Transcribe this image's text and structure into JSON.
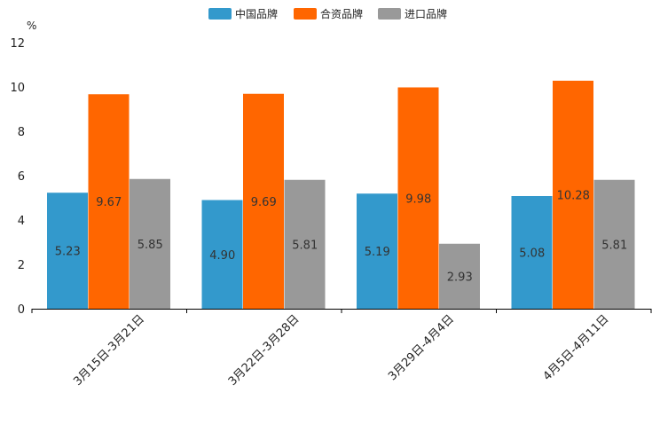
{
  "chart_data": {
    "type": "bar",
    "title": "",
    "ylabel": "%",
    "xlabel": "",
    "ylim": [
      0,
      12
    ],
    "yticks": [
      0,
      2,
      4,
      6,
      8,
      10,
      12
    ],
    "categories": [
      "3月15日-3月21日",
      "3月22日-3月28日",
      "3月29日-4月4日",
      "4月5日-4月11日"
    ],
    "series": [
      {
        "name": "中国品牌",
        "color": "#3399cc",
        "values": [
          5.23,
          4.9,
          5.19,
          5.08
        ],
        "labels": [
          "5.23",
          "4.90",
          "5.19",
          "5.08"
        ]
      },
      {
        "name": "合资品牌",
        "color": "#ff6600",
        "values": [
          9.67,
          9.69,
          9.98,
          10.28
        ],
        "labels": [
          "9.67",
          "9.69",
          "9.98",
          "10.28"
        ]
      },
      {
        "name": "进口品牌",
        "color": "#999999",
        "values": [
          5.85,
          5.81,
          2.93,
          5.81
        ],
        "labels": [
          "5.85",
          "5.81",
          "2.93",
          "5.81"
        ]
      }
    ],
    "legend_position": "top-center"
  }
}
